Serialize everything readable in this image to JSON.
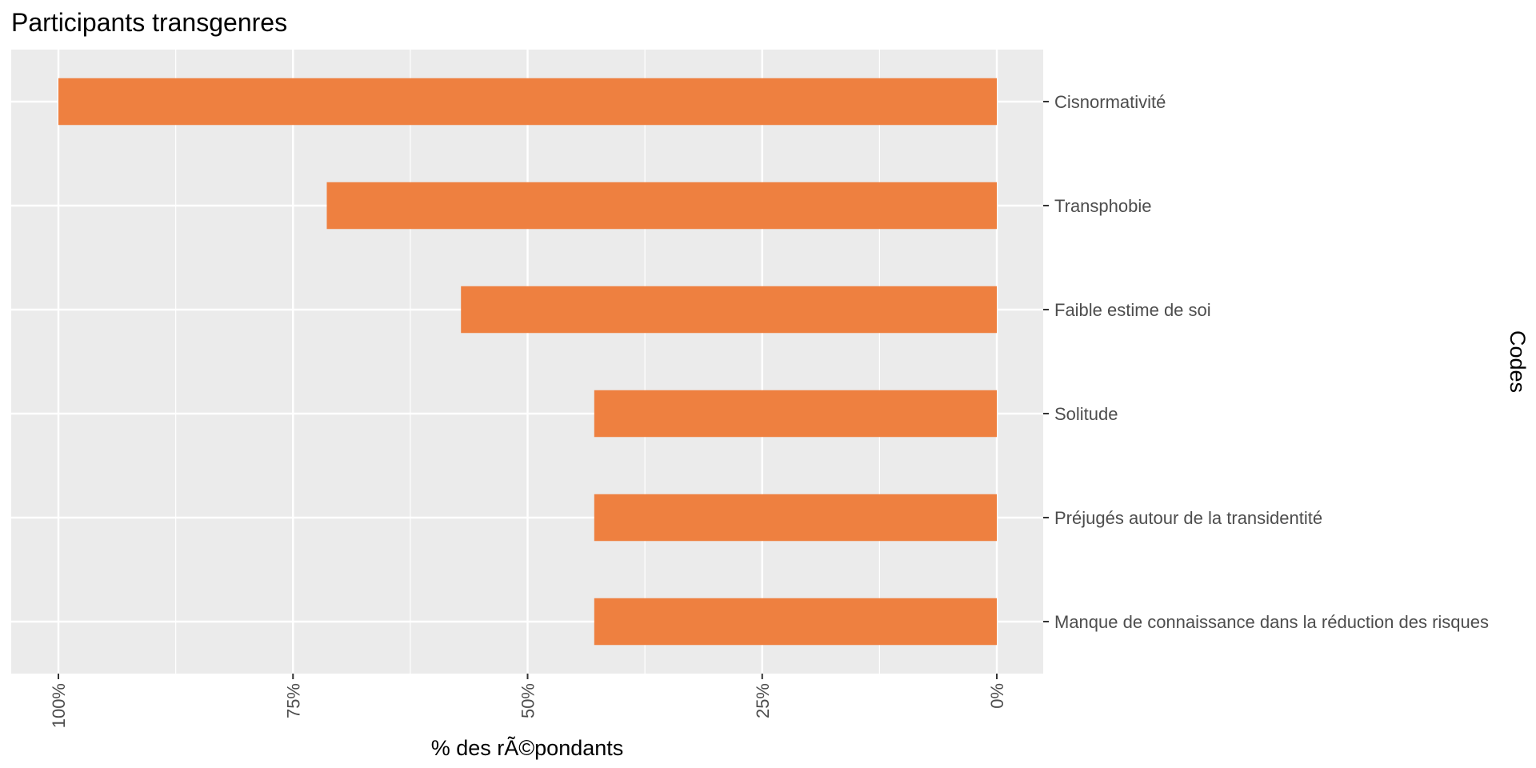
{
  "chart_data": {
    "type": "bar",
    "orientation": "horizontal",
    "title": "Participants transgenres",
    "xlabel": "% des rÃ©pondants",
    "ylabel": "Codes",
    "categories": [
      "Cisnormativité",
      "Transphobie",
      "Faible estime de soi",
      "Solitude",
      "Préjugés autour de la transidentité",
      "Manque de connaissance dans la réduction des risques"
    ],
    "values": [
      100,
      71.4,
      57.1,
      42.9,
      42.9,
      42.9
    ],
    "xlim": [
      0,
      104
    ],
    "x_reversed": true,
    "xticks": [
      100,
      75,
      50,
      25,
      0
    ],
    "xtick_labels": [
      "100%",
      "75%",
      "50%",
      "25%",
      "0%"
    ],
    "y_axis_position": "right",
    "grid": true,
    "bar_color": "#ee8040",
    "panel_color": "#ebebeb",
    "grid_color": "#ffffff"
  }
}
